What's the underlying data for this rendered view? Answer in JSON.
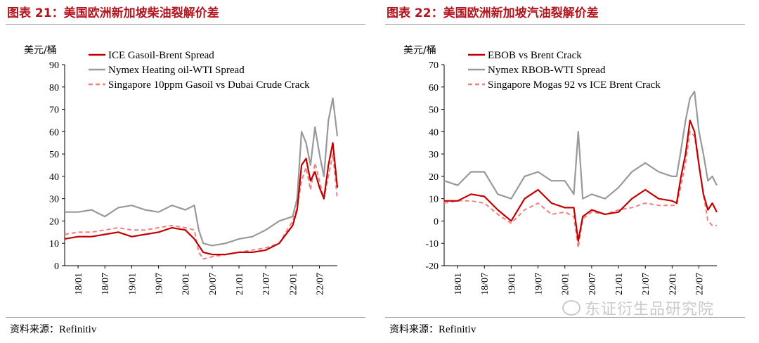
{
  "chart_data": [
    {
      "type": "line",
      "title": "图表 21：美国欧洲新加坡柴油裂解价差",
      "ylabel": "美元/桶",
      "ylim": [
        0,
        90
      ],
      "yticks": [
        0,
        10,
        20,
        30,
        40,
        50,
        60,
        70,
        80,
        90
      ],
      "x_tick_labels": [
        "18/01",
        "18/07",
        "19/01",
        "19/07",
        "20/01",
        "20/07",
        "21/01",
        "21/07",
        "22/01",
        "22/07"
      ],
      "x_domain": [
        "2017-10",
        "2022-11"
      ],
      "x": [
        "2017-10",
        "2018-01",
        "2018-04",
        "2018-07",
        "2018-10",
        "2019-01",
        "2019-04",
        "2019-07",
        "2019-10",
        "2020-01",
        "2020-03",
        "2020-04",
        "2020-05",
        "2020-07",
        "2020-10",
        "2021-01",
        "2021-04",
        "2021-07",
        "2021-10",
        "2022-01",
        "2022-02",
        "2022-03",
        "2022-04",
        "2022-05",
        "2022-06",
        "2022-07",
        "2022-08",
        "2022-09",
        "2022-10",
        "2022-11"
      ],
      "series": [
        {
          "name": "ICE Gasoil-Brent Spread",
          "color": "#c00000",
          "style": "solid",
          "values": [
            12,
            13,
            13,
            14,
            15,
            13,
            14,
            15,
            17,
            16,
            12,
            9,
            6,
            5,
            5,
            6,
            6,
            7,
            10,
            18,
            25,
            45,
            48,
            38,
            42,
            35,
            30,
            45,
            55,
            35
          ]
        },
        {
          "name": "Nymex Heating oil-WTI Spread",
          "color": "#999999",
          "style": "solid",
          "values": [
            24,
            24,
            25,
            22,
            26,
            27,
            25,
            24,
            27,
            25,
            27,
            16,
            10,
            9,
            10,
            12,
            13,
            16,
            20,
            22,
            30,
            60,
            55,
            45,
            62,
            50,
            40,
            65,
            75,
            58
          ]
        },
        {
          "name": "Singapore 10ppm Gasoil vs Dubai Crude Crack",
          "color": "#f08080",
          "style": "dashed",
          "values": [
            14,
            15,
            15,
            16,
            17,
            16,
            16,
            17,
            18,
            17,
            16,
            6,
            3,
            4,
            5,
            6,
            7,
            8,
            10,
            20,
            26,
            38,
            44,
            34,
            46,
            38,
            30,
            40,
            50,
            30
          ]
        }
      ],
      "legend_position": "top-left",
      "grid": false
    },
    {
      "type": "line",
      "title": "图表 22：美国欧洲新加坡汽油裂解价差",
      "ylabel": "美元/桶",
      "ylim": [
        -20,
        70
      ],
      "yticks": [
        -20,
        -10,
        0,
        10,
        20,
        30,
        40,
        50,
        60,
        70
      ],
      "x_tick_labels": [
        "18/01",
        "18/07",
        "19/01",
        "19/07",
        "20/01",
        "20/07",
        "21/01",
        "21/07",
        "22/01",
        "22/07"
      ],
      "x_domain": [
        "2017-10",
        "2022-11"
      ],
      "x": [
        "2017-10",
        "2018-01",
        "2018-04",
        "2018-07",
        "2018-10",
        "2019-01",
        "2019-04",
        "2019-07",
        "2019-10",
        "2020-01",
        "2020-03",
        "2020-04",
        "2020-05",
        "2020-07",
        "2020-10",
        "2021-01",
        "2021-04",
        "2021-07",
        "2021-10",
        "2022-01",
        "2022-02",
        "2022-03",
        "2022-04",
        "2022-05",
        "2022-06",
        "2022-07",
        "2022-08",
        "2022-09",
        "2022-10",
        "2022-11"
      ],
      "series": [
        {
          "name": "EBOB vs Brent Crack",
          "color": "#c00000",
          "style": "solid",
          "values": [
            9,
            9,
            12,
            11,
            5,
            0,
            10,
            14,
            8,
            6,
            6,
            -9,
            2,
            5,
            3,
            4,
            10,
            14,
            10,
            9,
            8,
            20,
            30,
            45,
            40,
            25,
            12,
            5,
            8,
            4
          ]
        },
        {
          "name": "Nymex RBOB-WTI Spread",
          "color": "#999999",
          "style": "solid",
          "values": [
            18,
            16,
            22,
            22,
            12,
            10,
            20,
            22,
            18,
            18,
            12,
            40,
            10,
            12,
            10,
            15,
            22,
            26,
            22,
            20,
            20,
            32,
            45,
            55,
            58,
            40,
            30,
            18,
            20,
            16
          ]
        },
        {
          "name": "Singapore Mogas 92 vs ICE Brent Crack",
          "color": "#f08080",
          "style": "dashed",
          "values": [
            8,
            9,
            9,
            8,
            3,
            -1,
            5,
            8,
            3,
            4,
            2,
            -12,
            1,
            4,
            3,
            5,
            6,
            8,
            7,
            7,
            7,
            16,
            26,
            40,
            38,
            25,
            12,
            0,
            -2,
            -2
          ]
        }
      ],
      "legend_position": "top-left",
      "grid": false
    }
  ],
  "source": {
    "label": "资料来源：",
    "value": "Refinitiv"
  },
  "watermark": "东证衍生品研究院"
}
